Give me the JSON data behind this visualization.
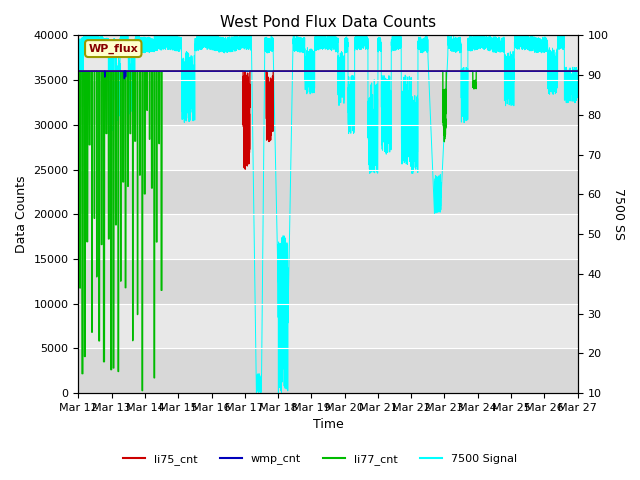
{
  "title": "West Pond Flux Data Counts",
  "xlabel": "Time",
  "ylabel_left": "Data Counts",
  "ylabel_right": "7500 SS",
  "ylim_left": [
    0,
    40000
  ],
  "ylim_right": [
    10,
    100
  ],
  "bg_color": "#d8d8d8",
  "bg_band_light": "#e8e8e8",
  "bg_band_dark": "#d0d0d0",
  "legend_box_label": "WP_flux",
  "legend_box_color": "#ffffcc",
  "legend_box_border": "#999900",
  "series": {
    "li75_cnt": {
      "color": "#cc0000",
      "lw": 1.0
    },
    "wmp_cnt": {
      "color": "#0000bb",
      "lw": 1.0
    },
    "li77_cnt": {
      "color": "#00bb00",
      "lw": 1.0
    },
    "signal7500": {
      "color": "cyan",
      "lw": 0.7
    }
  },
  "x_ticks": [
    12,
    13,
    14,
    15,
    16,
    17,
    18,
    19,
    20,
    21,
    22,
    23,
    24,
    25,
    26,
    27
  ],
  "x_tick_labels": [
    "Mar 12",
    "Mar 13",
    "Mar 14",
    "Mar 15",
    "Mar 16",
    "Mar 17",
    "Mar 18",
    "Mar 19",
    "Mar 20",
    "Mar 21",
    "Mar 22",
    "Mar 23",
    "Mar 24",
    "Mar 25",
    "Mar 26",
    "Mar 27"
  ],
  "yticks_left": [
    0,
    5000,
    10000,
    15000,
    20000,
    25000,
    30000,
    35000,
    40000
  ],
  "yticks_right": [
    10,
    20,
    30,
    40,
    50,
    60,
    70,
    80,
    90,
    100
  ],
  "nominal_count": 36000,
  "nominal_signal": 98.0,
  "signal_scale_min": 10,
  "signal_scale_max": 100
}
